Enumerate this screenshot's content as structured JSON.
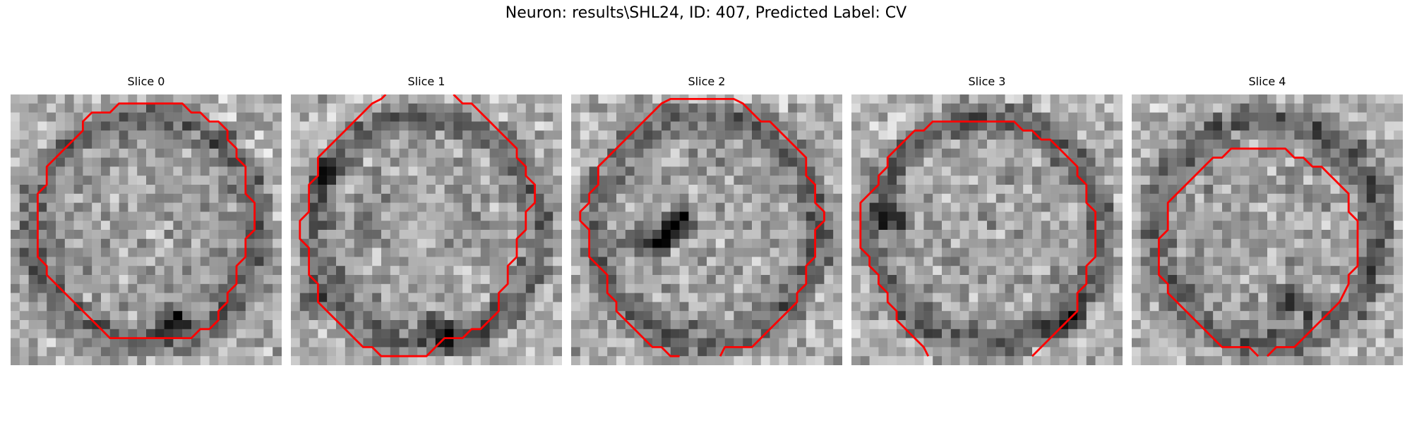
{
  "figure": {
    "title": "Neuron: results\\SHL24, ID: 407, Predicted Label: CV"
  },
  "panels": [
    {
      "title": "Slice 0",
      "image": "grayscale-microscopy-slice",
      "contour_color": "#ff0000",
      "contour": [
        [
          13.5,
          1
        ],
        [
          19,
          1
        ],
        [
          20,
          2
        ],
        [
          21,
          2
        ],
        [
          22,
          3
        ],
        [
          23,
          3
        ],
        [
          24,
          4
        ],
        [
          24,
          5
        ],
        [
          25,
          6
        ],
        [
          25,
          7
        ],
        [
          26,
          8
        ],
        [
          26,
          11
        ],
        [
          27,
          12
        ],
        [
          27,
          15
        ],
        [
          26,
          16
        ],
        [
          26,
          18
        ],
        [
          25,
          19
        ],
        [
          25,
          21
        ],
        [
          24,
          22
        ],
        [
          24,
          23
        ],
        [
          23,
          24
        ],
        [
          23,
          25
        ],
        [
          22,
          26
        ],
        [
          21,
          26
        ],
        [
          20,
          27
        ],
        [
          15,
          27
        ],
        [
          13.5,
          27
        ],
        [
          11,
          27
        ],
        [
          10,
          26
        ],
        [
          9,
          25
        ],
        [
          8,
          24
        ],
        [
          7,
          23
        ],
        [
          6,
          22
        ],
        [
          5,
          21
        ],
        [
          4,
          20
        ],
        [
          4,
          19
        ],
        [
          3,
          18
        ],
        [
          3,
          17
        ],
        [
          3,
          11
        ],
        [
          4,
          10
        ],
        [
          4,
          8
        ],
        [
          5,
          7
        ],
        [
          6,
          6
        ],
        [
          7,
          5
        ],
        [
          8,
          4
        ],
        [
          8,
          3
        ],
        [
          9,
          2
        ],
        [
          11,
          2
        ],
        [
          12,
          1
        ],
        [
          13.5,
          1
        ]
      ],
      "dark_spots": [
        [
          18,
          24
        ],
        [
          17,
          25
        ]
      ]
    },
    {
      "title": "Slice 1",
      "image": "grayscale-microscopy-slice",
      "contour_color": "#ff0000",
      "contour_segments": [
        [
          [
            18,
            0
          ],
          [
            19,
            1
          ],
          [
            20,
            1
          ],
          [
            21,
            2
          ],
          [
            22,
            3
          ],
          [
            23,
            4
          ],
          [
            24,
            5
          ],
          [
            25,
            6
          ],
          [
            25,
            7
          ],
          [
            26,
            8
          ],
          [
            26,
            9
          ],
          [
            27,
            10
          ],
          [
            27,
            12
          ],
          [
            26,
            13
          ],
          [
            26,
            15
          ],
          [
            25,
            16
          ],
          [
            25,
            18
          ],
          [
            24,
            19
          ],
          [
            24,
            21
          ],
          [
            23,
            22
          ],
          [
            23,
            24
          ],
          [
            22,
            25
          ],
          [
            21,
            26
          ],
          [
            20,
            26
          ],
          [
            19,
            27
          ],
          [
            17,
            27
          ],
          [
            16,
            28
          ],
          [
            15,
            29
          ],
          [
            10,
            29
          ],
          [
            9,
            28
          ],
          [
            8,
            28
          ],
          [
            7,
            27
          ],
          [
            6,
            26
          ],
          [
            5,
            25
          ],
          [
            4,
            24
          ],
          [
            3,
            23
          ],
          [
            3,
            21
          ],
          [
            2,
            20
          ],
          [
            2,
            18
          ],
          [
            2,
            17
          ],
          [
            1,
            16
          ],
          [
            1,
            14
          ],
          [
            2,
            13
          ],
          [
            2,
            10
          ],
          [
            3,
            9
          ],
          [
            3,
            7
          ],
          [
            4,
            6
          ],
          [
            5,
            5
          ],
          [
            6,
            4
          ],
          [
            7,
            3
          ],
          [
            8,
            2
          ],
          [
            9,
            1
          ],
          [
            10,
            0.5
          ],
          [
            10.5,
            0
          ]
        ]
      ],
      "dark_spots": [
        [
          8,
          14
        ],
        [
          15,
          25
        ],
        [
          17,
          26
        ],
        [
          2,
          22
        ],
        [
          3,
          8
        ]
      ]
    },
    {
      "title": "Slice 2",
      "image": "grayscale-microscopy-slice",
      "contour_color": "#ff0000",
      "contour_segments": [
        [
          [
            16.5,
            29
          ],
          [
            17,
            28
          ],
          [
            20,
            28
          ],
          [
            21,
            27
          ],
          [
            22,
            26
          ],
          [
            23,
            25
          ],
          [
            24,
            24
          ],
          [
            25,
            23
          ],
          [
            25,
            22
          ],
          [
            26,
            21
          ],
          [
            26,
            19
          ],
          [
            27,
            18
          ],
          [
            27,
            15
          ],
          [
            28,
            14
          ],
          [
            28,
            13
          ],
          [
            27,
            12
          ],
          [
            27,
            10
          ],
          [
            26,
            9
          ],
          [
            26,
            7
          ],
          [
            25,
            6
          ],
          [
            24,
            5
          ],
          [
            23,
            4
          ],
          [
            22,
            3
          ],
          [
            21,
            3
          ],
          [
            20,
            2
          ],
          [
            19,
            1
          ],
          [
            18,
            0.5
          ],
          [
            11,
            0.5
          ],
          [
            10,
            1
          ],
          [
            9,
            2
          ],
          [
            8,
            3
          ],
          [
            7,
            4
          ],
          [
            6,
            5
          ],
          [
            5,
            6
          ],
          [
            4,
            7
          ],
          [
            3,
            8
          ],
          [
            3,
            10
          ],
          [
            2,
            11
          ],
          [
            2,
            12
          ],
          [
            1,
            13
          ],
          [
            1,
            14
          ],
          [
            2,
            15
          ],
          [
            2,
            18
          ],
          [
            3,
            19
          ],
          [
            4,
            20
          ],
          [
            4,
            22
          ],
          [
            5,
            23
          ],
          [
            5,
            24
          ],
          [
            6,
            25
          ],
          [
            7,
            26
          ],
          [
            8,
            27
          ],
          [
            9,
            28
          ],
          [
            10,
            28
          ],
          [
            11,
            29
          ],
          [
            12,
            29
          ]
        ]
      ],
      "dark_spots": [
        [
          11,
          14
        ],
        [
          10,
          15
        ],
        [
          12,
          13
        ],
        [
          7,
          16
        ],
        [
          9,
          16
        ]
      ]
    },
    {
      "title": "Slice 3",
      "image": "grayscale-microscopy-slice",
      "contour_color": "#ff0000",
      "contour_segments": [
        [
          [
            20,
            29
          ],
          [
            21,
            28
          ],
          [
            22,
            27
          ],
          [
            23,
            26
          ],
          [
            24,
            25
          ],
          [
            25,
            24
          ],
          [
            25,
            22
          ],
          [
            26,
            21
          ],
          [
            26,
            19
          ],
          [
            27,
            18
          ],
          [
            27,
            13
          ],
          [
            26,
            12
          ],
          [
            26,
            10
          ],
          [
            25,
            9
          ],
          [
            25,
            8
          ],
          [
            24,
            7
          ],
          [
            23,
            6
          ],
          [
            22,
            5
          ],
          [
            21,
            5
          ],
          [
            20,
            4
          ],
          [
            19,
            4
          ],
          [
            18,
            3
          ],
          [
            14,
            3
          ],
          [
            9,
            3
          ],
          [
            8,
            4
          ],
          [
            7,
            4
          ],
          [
            6,
            5
          ],
          [
            5,
            6
          ],
          [
            4,
            7
          ],
          [
            4,
            8
          ],
          [
            3,
            9
          ],
          [
            3,
            10
          ],
          [
            2,
            11
          ],
          [
            1,
            12
          ],
          [
            1,
            17
          ],
          [
            2,
            18
          ],
          [
            2,
            19
          ],
          [
            3,
            20
          ],
          [
            3,
            21
          ],
          [
            4,
            22
          ],
          [
            4,
            23
          ],
          [
            5,
            24
          ],
          [
            5,
            25
          ],
          [
            6,
            26
          ],
          [
            7,
            27
          ],
          [
            8,
            28
          ],
          [
            8.5,
            29
          ]
        ]
      ],
      "dark_spots": [
        [
          22,
          26
        ],
        [
          24,
          24
        ],
        [
          3,
          13
        ],
        [
          5,
          14
        ]
      ]
    },
    {
      "title": "Slice 4",
      "image": "grayscale-microscopy-slice",
      "contour_color": "#ff0000",
      "contour_segments": [
        [
          [
            15,
            29
          ],
          [
            16,
            28
          ],
          [
            18,
            28
          ],
          [
            19,
            27
          ],
          [
            20,
            26
          ],
          [
            21,
            25
          ],
          [
            22,
            24
          ],
          [
            23,
            23
          ],
          [
            24,
            21
          ],
          [
            24,
            20
          ],
          [
            25,
            19
          ],
          [
            25,
            16
          ],
          [
            25,
            14
          ],
          [
            24,
            13
          ],
          [
            24,
            11
          ],
          [
            23,
            10
          ],
          [
            22,
            9
          ],
          [
            21,
            8
          ],
          [
            20,
            8
          ],
          [
            19,
            7
          ],
          [
            18,
            7
          ],
          [
            17,
            6
          ],
          [
            11,
            6
          ],
          [
            10,
            7
          ],
          [
            9,
            7
          ],
          [
            8,
            8
          ],
          [
            7,
            9
          ],
          [
            6,
            10
          ],
          [
            5,
            11
          ],
          [
            4,
            12
          ],
          [
            4,
            14
          ],
          [
            4,
            15
          ],
          [
            3,
            16
          ],
          [
            3,
            20
          ],
          [
            4,
            21
          ],
          [
            4,
            22
          ],
          [
            5,
            23
          ],
          [
            6,
            24
          ],
          [
            7,
            25
          ],
          [
            8,
            26
          ],
          [
            9,
            27
          ],
          [
            10,
            28
          ],
          [
            13,
            28
          ],
          [
            14,
            29
          ]
        ]
      ],
      "dark_spots": [
        [
          17,
          22
        ],
        [
          19,
          23
        ],
        [
          16,
          23
        ]
      ]
    }
  ]
}
